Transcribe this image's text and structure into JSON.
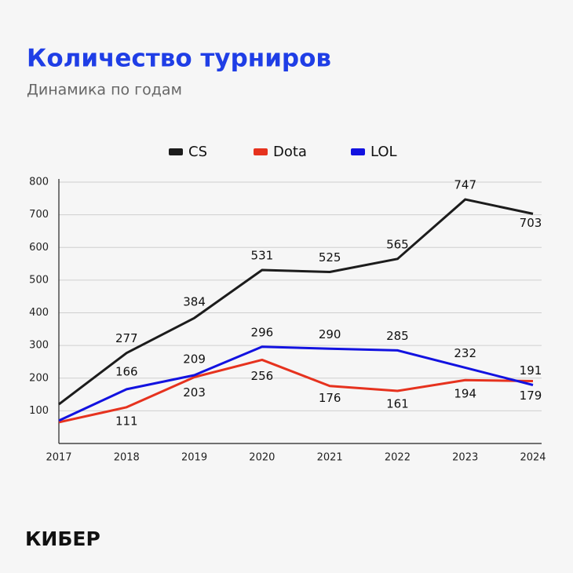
{
  "chart_data": {
    "type": "line",
    "title": "Количество турниров",
    "subtitle": "Динамика по годам",
    "categories": [
      "2017",
      "2018",
      "2019",
      "2020",
      "2021",
      "2022",
      "2023",
      "2024"
    ],
    "series": [
      {
        "name": "CS",
        "color": "#1c1c1c",
        "values": [
          120,
          277,
          384,
          531,
          525,
          565,
          747,
          703
        ]
      },
      {
        "name": "Dota",
        "color": "#e6321e",
        "values": [
          65,
          111,
          203,
          256,
          176,
          161,
          194,
          191
        ]
      },
      {
        "name": "LOL",
        "color": "#1212e0",
        "values": [
          70,
          166,
          209,
          296,
          290,
          285,
          232,
          179
        ]
      }
    ],
    "ylim": [
      0,
      800
    ],
    "yticks": [
      100,
      200,
      300,
      400,
      500,
      600,
      700,
      800
    ],
    "grid": true,
    "legend": "top",
    "brand": "КИБЕР"
  }
}
